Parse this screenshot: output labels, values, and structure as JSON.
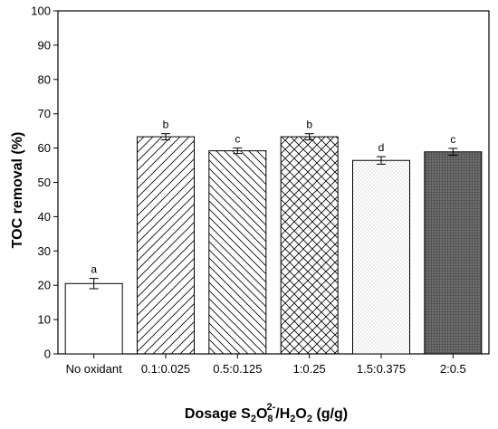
{
  "chart_data": {
    "type": "bar",
    "categories": [
      "No oxidant",
      "0.1:0.025",
      "0.5:0.125",
      "1:0.25",
      "1.5:0.375",
      "2:0.5"
    ],
    "values": [
      20.5,
      63.3,
      59.2,
      63.3,
      56.4,
      58.9
    ],
    "errors": [
      1.5,
      0.9,
      0.8,
      0.9,
      1.1,
      1.0
    ],
    "significance_letters": [
      "a",
      "b",
      "c",
      "b",
      "d",
      "c"
    ],
    "bar_patterns": [
      "none",
      "diagonal-lines",
      "back-diagonal-lines",
      "crosshatch",
      "light-dots",
      "dark-dots"
    ],
    "ylabel": "TOC removal (%)",
    "xlabel": {
      "prefix": "Dosage S",
      "s_sub": "2",
      "o": "O",
      "o_sub": "8",
      "o_sup": "2-",
      "slash": "/H",
      "h_sub": "2",
      "o2": "O",
      "o2_sub": "2",
      "suffix": " (g/g)"
    },
    "ylim": [
      0,
      100
    ],
    "yticks": [
      0,
      10,
      20,
      30,
      40,
      50,
      60,
      70,
      80,
      90,
      100
    ],
    "colors": {
      "dark_fill": "#555555",
      "stroke": "#000000"
    }
  }
}
